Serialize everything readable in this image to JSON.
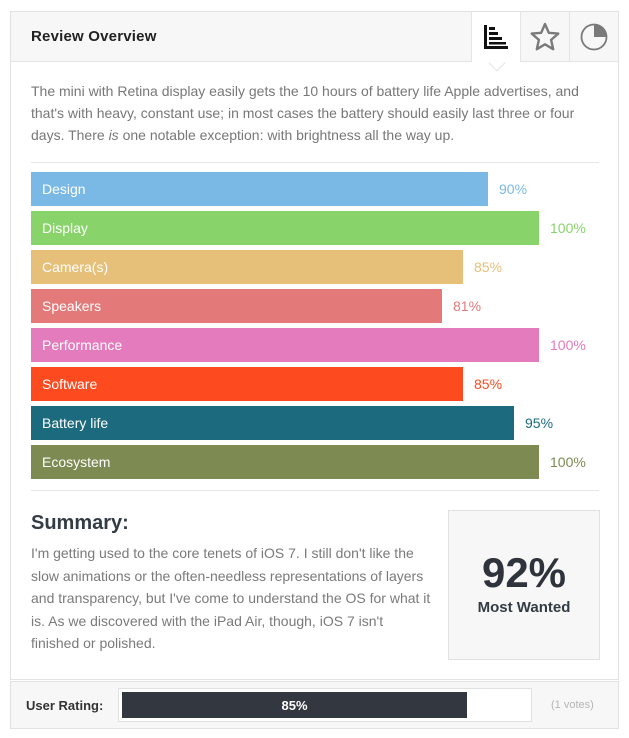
{
  "header": {
    "title": "Review Overview",
    "tabs": [
      {
        "icon": "bar-chart-icon",
        "active": true
      },
      {
        "icon": "star-icon",
        "active": false
      },
      {
        "icon": "pie-chart-icon",
        "active": false
      }
    ]
  },
  "intro": {
    "before": "The mini with Retina display easily gets the 10 hours of battery life Apple advertises, and that's with heavy, constant use; in most cases the battery should easily last three or four days. There ",
    "emphasis": "is",
    "after": " one notable exception: with brightness all the way up."
  },
  "chart_data": {
    "type": "bar",
    "orientation": "horizontal",
    "categories": [
      "Design",
      "Display",
      "Camera(s)",
      "Speakers",
      "Performance",
      "Software",
      "Battery life",
      "Ecosystem"
    ],
    "values": [
      90,
      100,
      85,
      81,
      100,
      85,
      95,
      100
    ],
    "value_labels": [
      "90%",
      "100%",
      "85%",
      "81%",
      "100%",
      "85%",
      "95%",
      "100%"
    ],
    "colors": [
      "#7ab9e6",
      "#88d46b",
      "#e6bf78",
      "#e47979",
      "#e37bbc",
      "#fd4a1e",
      "#1c6a7e",
      "#7d8a52"
    ],
    "xlim": [
      0,
      100
    ]
  },
  "summary": {
    "title": "Summary:",
    "text": "I'm getting used to the core tenets of iOS 7. I still don't like the slow animations or the often-needless representations of layers and transparency, but I've come to understand the OS for what it is. As we discovered with the iPad Air, though, iOS 7 isn't finished or polished.",
    "score": "92%",
    "score_label": "Most Wanted"
  },
  "user_rating": {
    "label": "User Rating:",
    "value": 85,
    "value_text": "85%",
    "votes": "(1 votes)",
    "fill_color": "#333840"
  }
}
